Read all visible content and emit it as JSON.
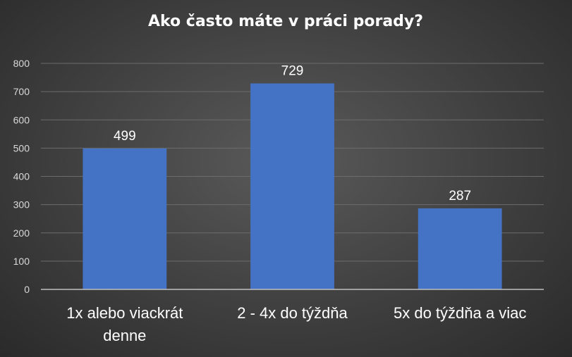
{
  "chart_data": {
    "type": "bar",
    "title": "Ako často máte v práci porady?",
    "categories": [
      [
        "1x alebo viackrát",
        "denne"
      ],
      [
        "2 - 4x do týždňa"
      ],
      [
        "5x do týždňa a viac"
      ]
    ],
    "values": [
      499,
      729,
      287
    ],
    "ylim": [
      0,
      800
    ],
    "yticks": [
      0,
      100,
      200,
      300,
      400,
      500,
      600,
      700,
      800
    ],
    "bar_color": "#4472C4",
    "grid": true,
    "legend": "none"
  }
}
